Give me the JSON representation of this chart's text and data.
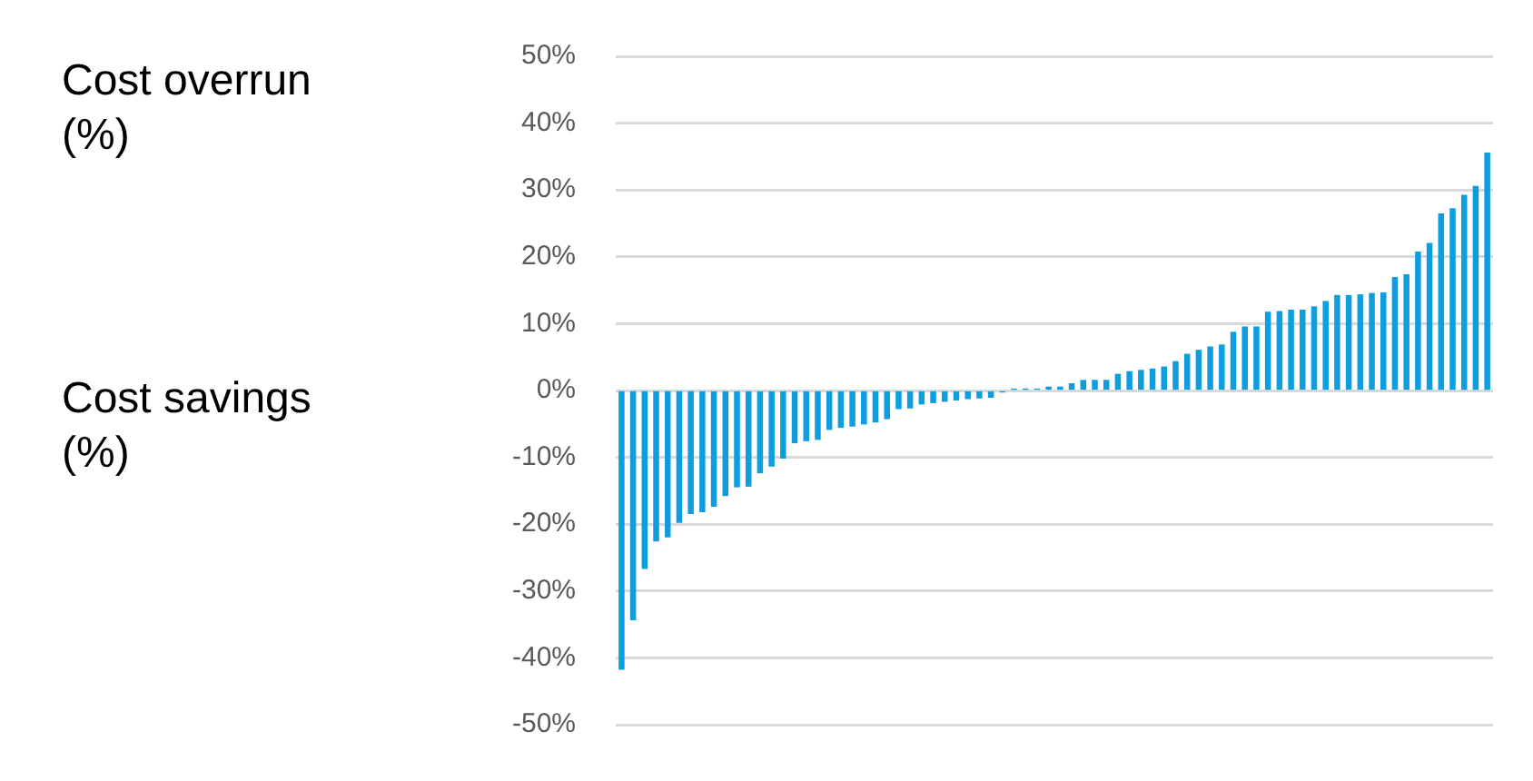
{
  "chart_data": {
    "type": "bar",
    "categories": [
      null,
      null,
      null,
      null,
      null,
      null,
      null,
      null,
      null,
      null,
      null,
      null,
      null,
      null,
      null,
      null,
      null,
      null,
      null,
      null,
      null,
      null,
      null,
      null,
      null,
      null,
      null,
      null,
      null,
      null,
      null,
      null,
      null,
      null,
      null,
      null,
      null,
      null,
      null,
      null,
      null,
      null,
      null,
      null,
      null,
      null,
      null,
      null,
      null,
      null,
      null,
      null,
      null,
      null,
      null,
      null,
      null,
      null,
      null,
      null,
      null,
      null,
      null,
      null,
      null,
      null,
      null,
      null,
      null,
      null,
      null,
      null,
      null,
      null,
      null,
      null
    ],
    "values": [
      -41.7,
      -34.3,
      -26.6,
      -22.5,
      -21.9,
      -19.7,
      -18.4,
      -18.1,
      -17.3,
      -15.7,
      -14.4,
      -14.3,
      -12.3,
      -11.3,
      -10.1,
      -7.8,
      -7.5,
      -7.3,
      -5.8,
      -5.5,
      -5.3,
      -5,
      -4.7,
      -4.2,
      -2.7,
      -2.6,
      -2,
      -1.8,
      -1.6,
      -1.4,
      -1.2,
      -1.1,
      -1,
      -0.2,
      0.2,
      0.2,
      0.2,
      0.5,
      0.5,
      1,
      1.5,
      1.5,
      1.5,
      2.4,
      2.8,
      3,
      3.2,
      3.5,
      4.3,
      5.4,
      6,
      6.5,
      6.8,
      8.7,
      9.5,
      9.5,
      11.7,
      11.8,
      12,
      12,
      12.5,
      13.3,
      14.2,
      14.2,
      14.3,
      14.5,
      14.6,
      16.9,
      17.3,
      20.7,
      22,
      26.4,
      27.2,
      29.2,
      30.5,
      35.5
    ],
    "color": "#0e9ee0",
    "ylim": [
      -50,
      50
    ],
    "yticks": [
      {
        "value": -50,
        "label": "-50%"
      },
      {
        "value": -40,
        "label": "-40%"
      },
      {
        "value": -30,
        "label": "-30%"
      },
      {
        "value": -20,
        "label": "-20%"
      },
      {
        "value": -10,
        "label": "-10%"
      },
      {
        "value": 0,
        "label": "0%"
      },
      {
        "value": 10,
        "label": "10%"
      },
      {
        "value": 20,
        "label": "20%"
      },
      {
        "value": 30,
        "label": "30%"
      },
      {
        "value": 40,
        "label": "40%"
      },
      {
        "value": 50,
        "label": "50%"
      }
    ],
    "grid": "y",
    "tick_labels": "y",
    "annotations": [
      "Cost overrun (%)",
      "Cost savings (%)"
    ]
  }
}
